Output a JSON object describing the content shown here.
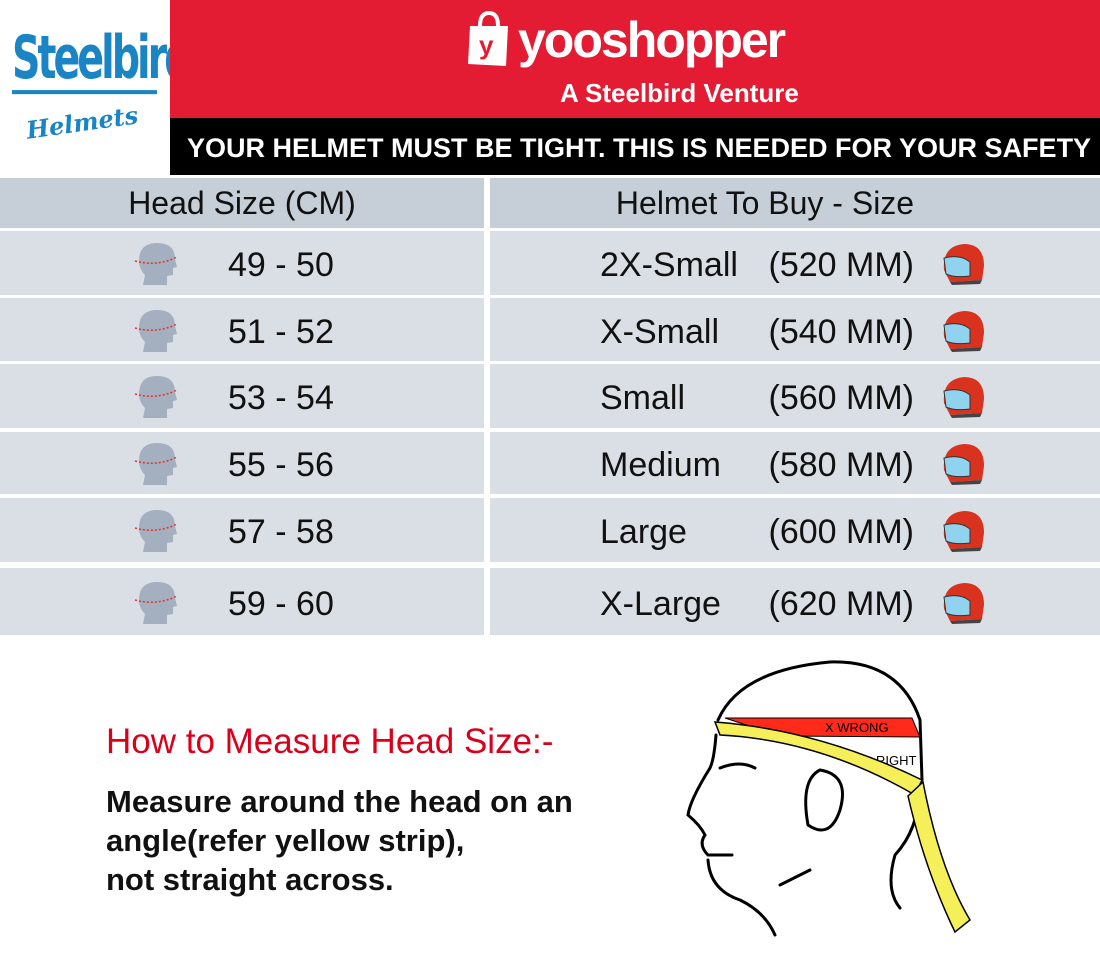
{
  "logo": {
    "brand": "Steelbird",
    "sub": "Helmets"
  },
  "header": {
    "shop_name": "yooshopper",
    "bag_letter": "y",
    "tagline": "A Steelbird Venture",
    "notice": "YOUR HELMET MUST BE TIGHT. THIS IS NEEDED FOR YOUR SAFETY"
  },
  "table": {
    "headers": [
      "Head Size (CM)",
      "Helmet To Buy - Size"
    ],
    "rows": [
      {
        "head": "49 - 50",
        "size": "2X-Small",
        "mm": "(520 MM)"
      },
      {
        "head": "51 - 52",
        "size": "X-Small",
        "mm": "(540 MM)"
      },
      {
        "head": "53 - 54",
        "size": "Small",
        "mm": "(560 MM)"
      },
      {
        "head": "55 - 56",
        "size": "Medium",
        "mm": "(580 MM)"
      },
      {
        "head": "57 - 58",
        "size": "Large",
        "mm": "(600 MM)"
      },
      {
        "head": "59 - 60",
        "size": "X-Large",
        "mm": "(620 MM)"
      }
    ]
  },
  "measure": {
    "title": "How to Measure Head Size:-",
    "lines": [
      "Measure around the head on an",
      "angle(refer yellow strip),",
      "not straight across."
    ],
    "wrong_label": "X WRONG",
    "right_label": "RIGHT"
  },
  "colors": {
    "red": "#e31b33",
    "black": "#000000",
    "brand_blue": "#1a84c4",
    "header_row": "#c6ced8",
    "row": "#d9dfe5",
    "accent_text": "#d9001b"
  }
}
